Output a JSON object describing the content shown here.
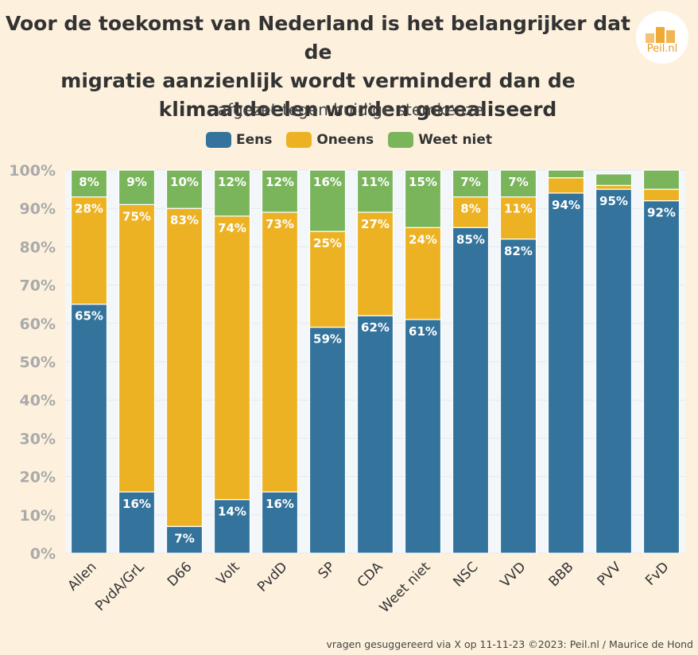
{
  "title_lines": [
    "Voor de toekomst van Nederland is het belangrijker dat de",
    "migratie aanzienlijk wordt verminderd dan de",
    "klimaatdoelen worden gerealiseerd"
  ],
  "subtitle": "afgezet tegen huidige stemkeuze",
  "logo_text": "Peil.nl",
  "footer": "vragen gesuggereerd via X op 11-11-23 ©2023: Peil.nl / Maurice de Hond",
  "colors": {
    "eens": "#33739c",
    "oneens": "#edb223",
    "weet_niet": "#7ab55c",
    "background": "#fdf1de",
    "plot": "#f3f7fa"
  },
  "chart_data": {
    "type": "bar",
    "stacked": true,
    "title": "Voor de toekomst van Nederland is het belangrijker dat de migratie aanzienlijk wordt verminderd dan de klimaatdoelen worden gerealiseerd",
    "subtitle": "afgezet tegen huidige stemkeuze",
    "categories": [
      "Allen",
      "PvdA/GrL",
      "D66",
      "Volt",
      "PvdD",
      "SP",
      "CDA",
      "Weet niet",
      "NSC",
      "VVD",
      "BBB",
      "PVV",
      "FvD"
    ],
    "series": [
      {
        "name": "Eens",
        "values": [
          65,
          16,
          7,
          14,
          16,
          59,
          62,
          61,
          85,
          82,
          94,
          95,
          92
        ]
      },
      {
        "name": "Oneens",
        "values": [
          28,
          75,
          83,
          74,
          73,
          25,
          27,
          24,
          8,
          11,
          4,
          1,
          3
        ]
      },
      {
        "name": "Weet niet",
        "values": [
          8,
          9,
          10,
          12,
          12,
          16,
          11,
          15,
          7,
          7,
          2,
          3,
          5
        ]
      }
    ],
    "labels": [
      [
        "65%",
        "16%",
        "7%",
        "14%",
        "16%",
        "59%",
        "62%",
        "61%",
        "85%",
        "82%",
        "94%",
        "95%",
        "92%"
      ],
      [
        "28%",
        "75%",
        "83%",
        "74%",
        "73%",
        "25%",
        "27%",
        "24%",
        "8%",
        "11%",
        "",
        "",
        ""
      ],
      [
        "8%",
        "9%",
        "10%",
        "12%",
        "12%",
        "16%",
        "11%",
        "15%",
        "7%",
        "7%",
        "",
        "",
        ""
      ]
    ],
    "yticks": [
      "0%",
      "10%",
      "20%",
      "30%",
      "40%",
      "50%",
      "60%",
      "70%",
      "80%",
      "90%",
      "100%"
    ],
    "ylim": [
      0,
      100
    ],
    "legend": "top-center"
  }
}
